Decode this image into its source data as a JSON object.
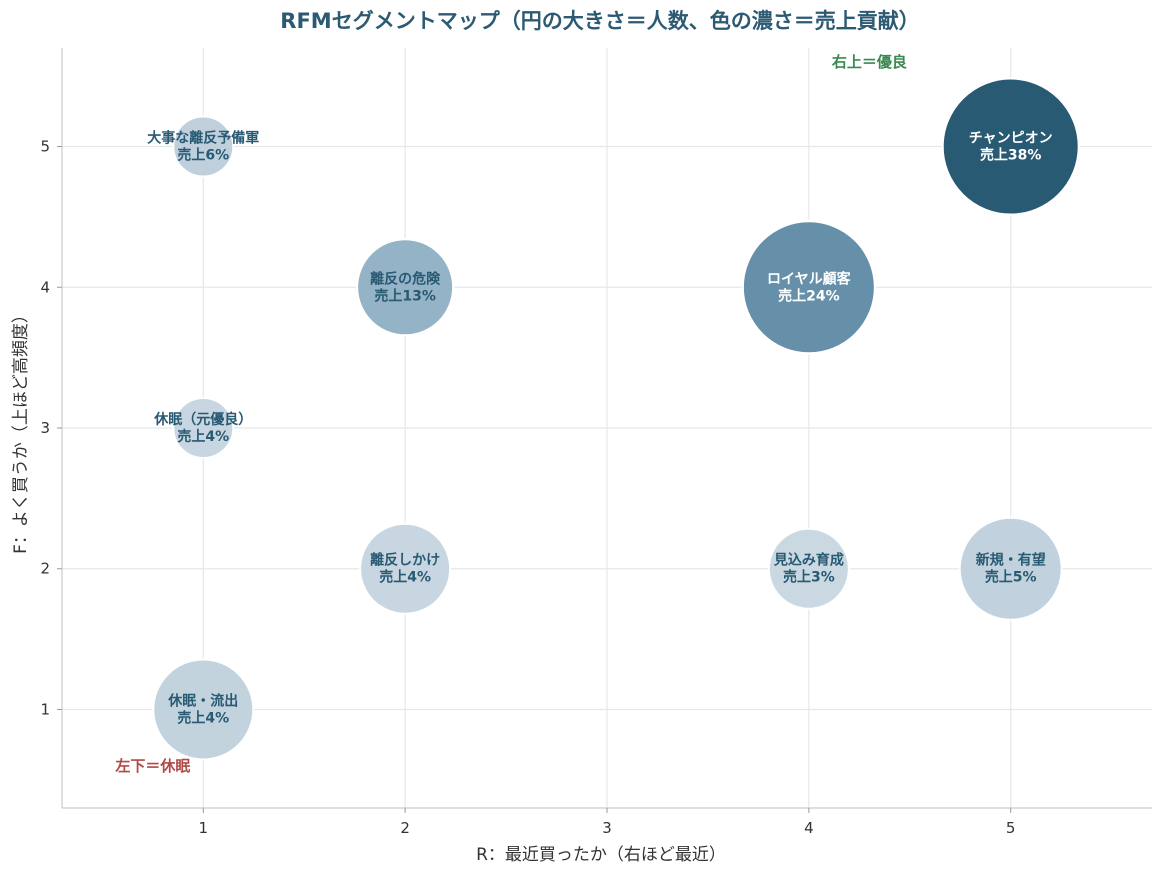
{
  "chart_data": {
    "type": "scatter",
    "title": "RFMセグメントマップ（円の大きさ＝人数、色の濃さ＝売上貢献）",
    "xlabel": "R：最近買ったか（右ほど最近）",
    "ylabel": "F：よく買うか（上ほど高頻度）",
    "xlim": [
      0.3,
      5.7
    ],
    "ylim": [
      0.3,
      5.7
    ],
    "xticks": [
      1,
      2,
      3,
      4,
      5
    ],
    "yticks": [
      1,
      2,
      3,
      4,
      5
    ],
    "grid": true,
    "points": [
      {
        "name": "チャンピオン",
        "sales": "売上38%",
        "x": 5,
        "y": 5,
        "size": 68,
        "color": "#285a73",
        "text_color": "#ffffff"
      },
      {
        "name": "ロイヤル顧客",
        "sales": "売上24%",
        "x": 4,
        "y": 4,
        "size": 66,
        "color": "#6690aa",
        "text_color": "#ffffff"
      },
      {
        "name": "離反の危険",
        "sales": "売上13%",
        "x": 2,
        "y": 4,
        "size": 48,
        "color": "#95b3c6",
        "text_color": "#285a73"
      },
      {
        "name": "大事な離反予備軍",
        "sales": "売上6%",
        "x": 1,
        "y": 5,
        "size": 30,
        "color": "#bfd0dc",
        "text_color": "#285a73"
      },
      {
        "name": "休眠（元優良）",
        "sales": "売上4%",
        "x": 1,
        "y": 3,
        "size": 30,
        "color": "#c7d6e0",
        "text_color": "#285a73"
      },
      {
        "name": "離反しかけ",
        "sales": "売上4%",
        "x": 2,
        "y": 2,
        "size": 45,
        "color": "#c7d6e0",
        "text_color": "#285a73"
      },
      {
        "name": "見込み育成",
        "sales": "売上3%",
        "x": 4,
        "y": 2,
        "size": 40,
        "color": "#cad8e2",
        "text_color": "#285a73"
      },
      {
        "name": "新規・有望",
        "sales": "売上5%",
        "x": 5,
        "y": 2,
        "size": 51,
        "color": "#c1d2de",
        "text_color": "#285a73"
      },
      {
        "name": "休眠・流出",
        "sales": "売上4%",
        "x": 1,
        "y": 1,
        "size": 50,
        "color": "#c3d3de",
        "text_color": "#285a73"
      }
    ],
    "annotations": [
      {
        "text": "右上＝優良",
        "x": 4.3,
        "y": 5.6,
        "color": "#3a8a4f"
      },
      {
        "text": "左下＝休眠",
        "x": 0.75,
        "y": 0.6,
        "color": "#b04a45"
      }
    ]
  }
}
